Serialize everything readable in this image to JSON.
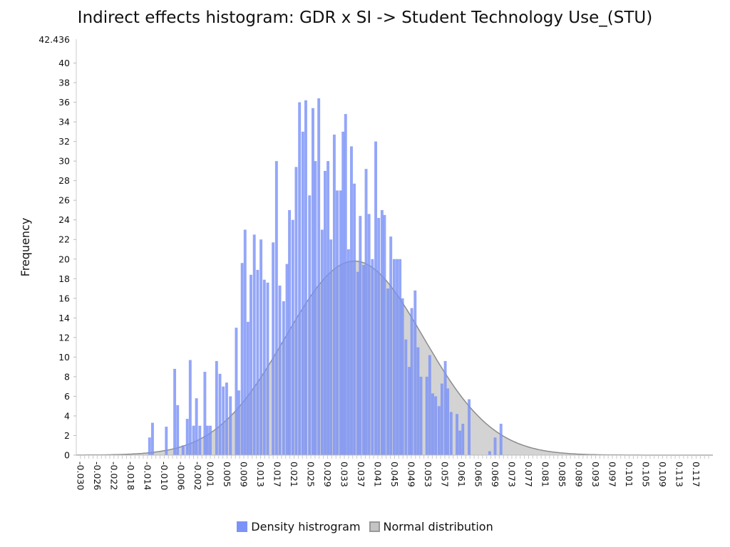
{
  "chart_data": {
    "type": "bar",
    "title": "Indirect effects histogram: GDR x SI -> Student Technology Use_(STU)",
    "ylabel": "Frequency",
    "xlabel": "",
    "ylim": [
      0,
      42.436
    ],
    "xlim": [
      -0.031,
      0.121
    ],
    "y_ticks": [
      0,
      2,
      4,
      6,
      8,
      10,
      12,
      14,
      16,
      18,
      20,
      22,
      24,
      26,
      28,
      30,
      32,
      34,
      36,
      38,
      40
    ],
    "y_max_label": "42.436",
    "x_tick_labels": [
      "-0.030",
      "-0.026",
      "-0.022",
      "-0.018",
      "-0.014",
      "-0.010",
      "-0.006",
      "-0.002",
      "0.001",
      "0.005",
      "0.009",
      "0.013",
      "0.017",
      "0.021",
      "0.025",
      "0.029",
      "0.033",
      "0.037",
      "0.041",
      "0.045",
      "0.049",
      "0.053",
      "0.057",
      "0.061",
      "0.065",
      "0.069",
      "0.073",
      "0.077",
      "0.081",
      "0.085",
      "0.089",
      "0.093",
      "0.097",
      "0.101",
      "0.105",
      "0.109",
      "0.113",
      "0.117"
    ],
    "bin_width": 0.000667,
    "series": [
      {
        "name": "Density histrogram",
        "color": "#7b93f7",
        "bins": [
          [
            -0.0135,
            1.8
          ],
          [
            -0.0128,
            3.3
          ],
          [
            -0.0095,
            2.9
          ],
          [
            -0.0075,
            8.8
          ],
          [
            -0.0068,
            5.1
          ],
          [
            -0.0055,
            1.0
          ],
          [
            -0.0045,
            3.7
          ],
          [
            -0.0038,
            9.7
          ],
          [
            -0.003,
            3.0
          ],
          [
            -0.0023,
            5.8
          ],
          [
            -0.0015,
            3.0
          ],
          [
            -0.0003,
            8.5
          ],
          [
            0.0003,
            3.0
          ],
          [
            0.001,
            3.0
          ],
          [
            0.0025,
            9.6
          ],
          [
            0.0033,
            8.3
          ],
          [
            0.0041,
            7.0
          ],
          [
            0.0049,
            7.4
          ],
          [
            0.0058,
            6.0
          ],
          [
            0.0072,
            13.0
          ],
          [
            0.0078,
            6.6
          ],
          [
            0.0086,
            19.6
          ],
          [
            0.0093,
            23.0
          ],
          [
            0.01,
            13.6
          ],
          [
            0.0107,
            18.4
          ],
          [
            0.0115,
            22.5
          ],
          [
            0.0123,
            18.9
          ],
          [
            0.0131,
            22.0
          ],
          [
            0.0139,
            17.9
          ],
          [
            0.0147,
            17.6
          ],
          [
            0.016,
            21.7
          ],
          [
            0.0168,
            30.0
          ],
          [
            0.0176,
            17.3
          ],
          [
            0.0185,
            15.7
          ],
          [
            0.0193,
            19.5
          ],
          [
            0.0199,
            25.0
          ],
          [
            0.0207,
            24.0
          ],
          [
            0.0215,
            29.4
          ],
          [
            0.0223,
            36.0
          ],
          [
            0.0231,
            33.0
          ],
          [
            0.0238,
            36.2
          ],
          [
            0.0247,
            26.5
          ],
          [
            0.0255,
            35.4
          ],
          [
            0.0261,
            30.0
          ],
          [
            0.0269,
            36.4
          ],
          [
            0.0277,
            23.0
          ],
          [
            0.0284,
            29.0
          ],
          [
            0.0291,
            30.0
          ],
          [
            0.0298,
            22.0
          ],
          [
            0.0306,
            32.7
          ],
          [
            0.0313,
            27.0
          ],
          [
            0.0321,
            27.0
          ],
          [
            0.0327,
            33.0
          ],
          [
            0.0333,
            34.8
          ],
          [
            0.034,
            21.0
          ],
          [
            0.0347,
            31.5
          ],
          [
            0.0354,
            27.7
          ],
          [
            0.0362,
            18.7
          ],
          [
            0.0368,
            24.4
          ],
          [
            0.0376,
            19.4
          ],
          [
            0.0382,
            29.2
          ],
          [
            0.0389,
            24.6
          ],
          [
            0.0397,
            20.0
          ],
          [
            0.0405,
            32.0
          ],
          [
            0.0412,
            24.2
          ],
          [
            0.042,
            25.0
          ],
          [
            0.0426,
            24.5
          ],
          [
            0.0434,
            17.0
          ],
          [
            0.0441,
            22.3
          ],
          [
            0.0449,
            20.0
          ],
          [
            0.0456,
            20.0
          ],
          [
            0.0463,
            20.0
          ],
          [
            0.0469,
            16.0
          ],
          [
            0.0477,
            11.8
          ],
          [
            0.0485,
            9.0
          ],
          [
            0.0491,
            15.0
          ],
          [
            0.0499,
            16.8
          ],
          [
            0.0506,
            11.0
          ],
          [
            0.0513,
            8.0
          ],
          [
            0.0527,
            8.0
          ],
          [
            0.0534,
            10.2
          ],
          [
            0.0541,
            6.3
          ],
          [
            0.0548,
            6.0
          ],
          [
            0.0556,
            5.0
          ],
          [
            0.0563,
            7.3
          ],
          [
            0.0571,
            9.6
          ],
          [
            0.0577,
            6.8
          ],
          [
            0.0585,
            4.4
          ],
          [
            0.0599,
            4.2
          ],
          [
            0.0606,
            2.5
          ],
          [
            0.0613,
            3.2
          ],
          [
            0.0628,
            5.7
          ],
          [
            0.0677,
            0.4
          ],
          [
            0.069,
            1.8
          ],
          [
            0.0704,
            3.2
          ]
        ]
      },
      {
        "name": "Normal distribution",
        "color": "#c0c0c0",
        "mean": 0.0354,
        "sd": 0.0165,
        "peak": 19.8
      }
    ],
    "legend_position": "bottom-center",
    "grid": false
  }
}
